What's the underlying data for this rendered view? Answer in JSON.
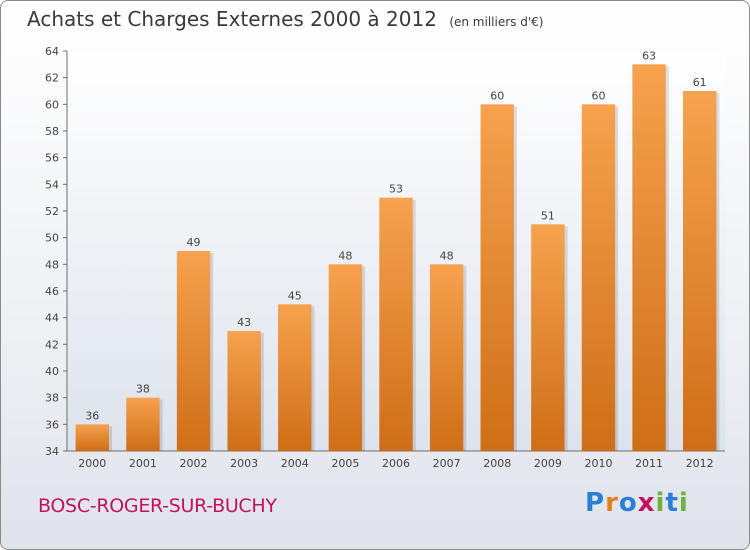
{
  "header": {
    "title": "Achats et Charges Externes 2000 à 2012",
    "subtitle": "(en milliers d'€)"
  },
  "footer": {
    "commune": "BOSC-ROGER-SUR-BUCHY",
    "logo_letters": [
      "P",
      "r",
      "o",
      "x",
      "i",
      "t",
      "i"
    ],
    "logo_colors": [
      "#2a7fd4",
      "#e0811b",
      "#2a7fd4",
      "#c2135a",
      "#6db33f",
      "#2a7fd4",
      "#6db33f"
    ]
  },
  "chart_data": {
    "type": "bar",
    "categories": [
      "2000",
      "2001",
      "2002",
      "2003",
      "2004",
      "2005",
      "2006",
      "2007",
      "2008",
      "2009",
      "2010",
      "2011",
      "2012"
    ],
    "values": [
      36,
      38,
      49,
      43,
      45,
      48,
      53,
      48,
      60,
      51,
      60,
      63,
      61
    ],
    "ylim": [
      34,
      64
    ],
    "yticks": [
      34,
      36,
      38,
      40,
      42,
      44,
      46,
      48,
      50,
      52,
      54,
      56,
      58,
      60,
      62,
      64
    ],
    "grid": false,
    "bar_color_top": "#f6a24e",
    "bar_color_bottom": "#cf6e17",
    "title": "Achats et Charges Externes 2000 à 2012",
    "xlabel": "",
    "ylabel": ""
  }
}
